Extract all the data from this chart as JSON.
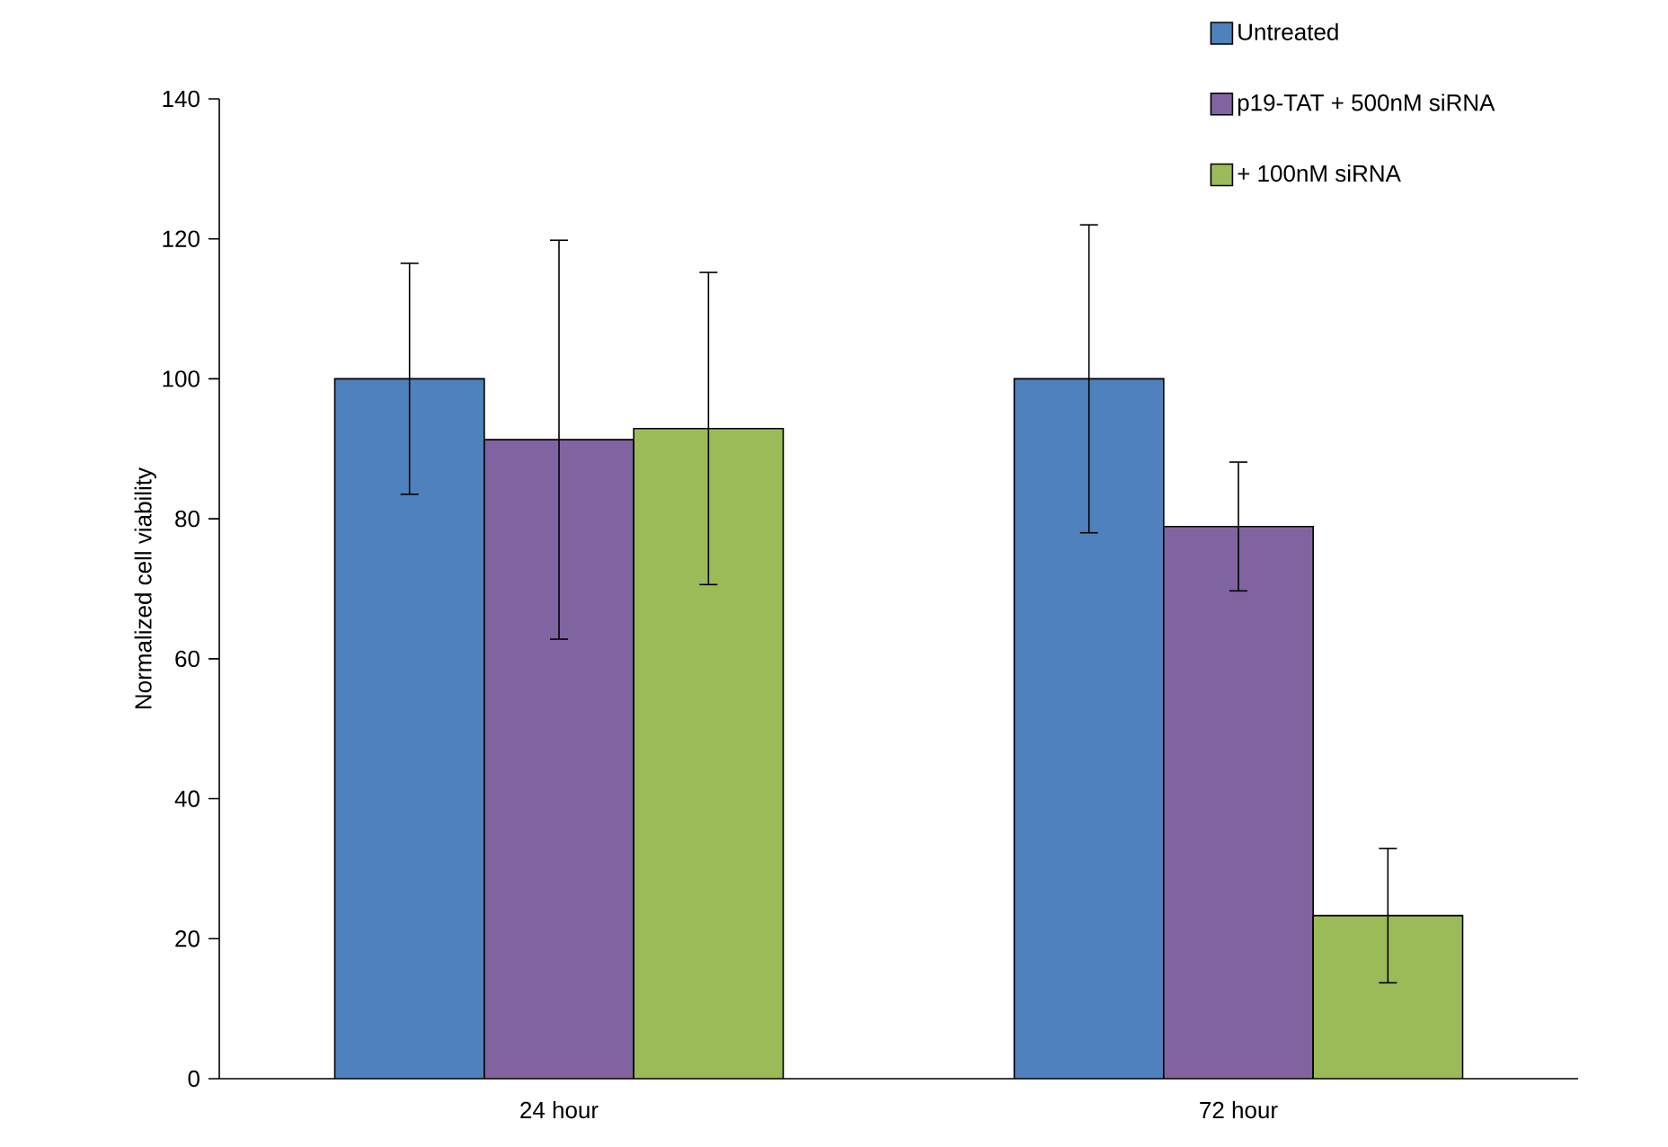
{
  "chart_data": {
    "type": "bar",
    "ylabel": "Normalized cell viability",
    "categories": [
      "24 hour",
      "72 hour"
    ],
    "series": [
      {
        "name": "Untreated",
        "color": "#4f81bd",
        "values": [
          100,
          100
        ],
        "errors": [
          16.5,
          22
        ]
      },
      {
        "name": "p19-TAT + 500nM siRNA",
        "color": "#8064a2",
        "values": [
          91.3,
          78.9
        ],
        "errors": [
          28.5,
          9.2
        ]
      },
      {
        "name": "+ 100nM siRNA",
        "color": "#9bbb59",
        "values": [
          92.9,
          23.3
        ],
        "errors": [
          22.3,
          9.6
        ]
      }
    ],
    "ylim": [
      0,
      140
    ],
    "yticks": [
      0,
      20,
      40,
      60,
      80,
      100,
      120,
      140
    ],
    "grid": false,
    "legend": "top right"
  }
}
